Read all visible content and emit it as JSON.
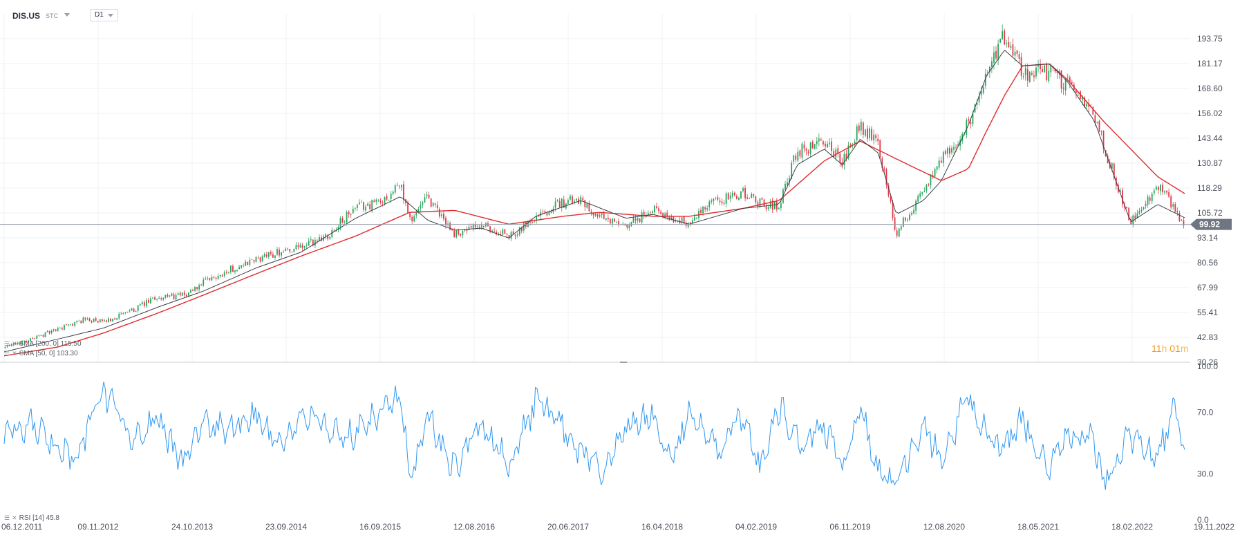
{
  "header": {
    "symbol": "DIS.US",
    "product_type": "STC",
    "timeframe": "D1"
  },
  "legend": {
    "sma200_label": "SMA [200, 0] 115.50",
    "sma50_label": "SMA [50, 0] 103.30",
    "rsi_label": "RSI [14] 45.8"
  },
  "countdown": {
    "hours": "11",
    "h_unit": "h",
    "minutes": "01",
    "m_unit": "m"
  },
  "colors": {
    "bull": "#26a65b",
    "bear": "#e0384a",
    "sma50": "#3a3f47",
    "sma200": "#e02b2b",
    "rsi": "#2e97f0",
    "grid": "#eef0f3",
    "price_tag": "#6f7682"
  },
  "chart_data": [
    {
      "type": "candlestick",
      "title": "DIS.US",
      "xlabel": "",
      "ylabel": "",
      "x_ticks": [
        "06.12.2011",
        "09.11.2012",
        "24.10.2013",
        "23.09.2014",
        "16.09.2015",
        "12.08.2016",
        "20.06.2017",
        "16.04.2018",
        "04.02.2019",
        "06.11.2019",
        "12.08.2020",
        "18.05.2021",
        "18.02.2022",
        "19.11.2022"
      ],
      "y_ticks": [
        30.26,
        42.83,
        55.41,
        67.99,
        80.56,
        93.14,
        105.72,
        118.29,
        130.87,
        143.44,
        156.02,
        168.6,
        181.17,
        193.75
      ],
      "ylim": [
        30.26,
        206.3
      ],
      "last_price": 99.92,
      "grid": true,
      "series": [
        {
          "name": "DIS.US",
          "x": [
            "2011-12",
            "2012-03",
            "2012-06",
            "2012-09",
            "2012-11",
            "2013-02",
            "2013-05",
            "2013-08",
            "2013-10",
            "2014-01",
            "2014-04",
            "2014-07",
            "2014-09",
            "2014-12",
            "2015-03",
            "2015-06",
            "2015-08",
            "2015-09",
            "2015-11",
            "2016-02",
            "2016-05",
            "2016-08",
            "2016-11",
            "2017-02",
            "2017-04",
            "2017-06",
            "2017-09",
            "2017-12",
            "2018-02",
            "2018-04",
            "2018-07",
            "2018-10",
            "2018-12",
            "2019-02",
            "2019-04",
            "2019-07",
            "2019-09",
            "2019-11",
            "2020-01",
            "2020-03",
            "2020-06",
            "2020-08",
            "2020-11",
            "2021-01",
            "2021-03",
            "2021-05",
            "2021-08",
            "2021-10",
            "2022-01",
            "2022-02",
            "2022-05",
            "2022-08",
            "2022-11"
          ],
          "values": [
            37.5,
            42.0,
            47.0,
            52.0,
            50.5,
            56.0,
            63.0,
            64.0,
            70.0,
            77.0,
            82.0,
            87.0,
            88.0,
            95.0,
            108.0,
            112.0,
            120.0,
            102.0,
            113.0,
            95.0,
            99.0,
            94.0,
            104.0,
            111.0,
            113.0,
            104.0,
            98.0,
            108.0,
            103.0,
            101.0,
            112.0,
            116.0,
            110.0,
            110.0,
            137.0,
            141.0,
            132.0,
            150.0,
            141.0,
            95.0,
            118.0,
            132.0,
            151.0,
            176.0,
            195.0,
            176.0,
            177.0,
            170.0,
            155.0,
            140.0,
            101.0,
            120.0,
            99.92
          ]
        },
        {
          "name": "SMA [200, 0]",
          "x": [
            "2011-12",
            "2012-06",
            "2012-11",
            "2013-05",
            "2013-10",
            "2014-04",
            "2014-09",
            "2015-03",
            "2015-09",
            "2016-02",
            "2016-08",
            "2017-02",
            "2017-06",
            "2017-12",
            "2018-04",
            "2018-10",
            "2019-02",
            "2019-07",
            "2019-11",
            "2020-03",
            "2020-08",
            "2020-11",
            "2021-01",
            "2021-03",
            "2021-05",
            "2021-08",
            "2021-10",
            "2022-02",
            "2022-05",
            "2022-08",
            "2022-11"
          ],
          "values": [
            33.5,
            38.0,
            45.0,
            55.0,
            64.0,
            75.0,
            84.0,
            94.0,
            106.0,
            107.0,
            100.0,
            104.0,
            106.0,
            104.0,
            104.0,
            108.0,
            112.0,
            132.0,
            142.0,
            133.0,
            122.0,
            128.0,
            147.0,
            165.0,
            180.0,
            181.0,
            173.0,
            152.0,
            138.0,
            124.0,
            115.5
          ]
        },
        {
          "name": "SMA [50, 0]",
          "x": [
            "2011-12",
            "2012-06",
            "2012-11",
            "2013-05",
            "2013-10",
            "2014-04",
            "2014-09",
            "2015-03",
            "2015-08",
            "2015-11",
            "2016-02",
            "2016-05",
            "2016-08",
            "2016-11",
            "2017-04",
            "2017-09",
            "2017-12",
            "2018-04",
            "2018-10",
            "2019-02",
            "2019-04",
            "2019-07",
            "2019-09",
            "2019-11",
            "2020-01",
            "2020-03",
            "2020-06",
            "2020-08",
            "2020-11",
            "2021-01",
            "2021-03",
            "2021-05",
            "2021-08",
            "2021-10",
            "2022-01",
            "2022-05",
            "2022-08",
            "2022-11"
          ],
          "values": [
            35.5,
            42.0,
            47.5,
            58.0,
            66.0,
            78.0,
            86.0,
            103.0,
            114.0,
            102.0,
            97.0,
            98.0,
            93.0,
            104.0,
            112.0,
            103.0,
            105.0,
            100.0,
            108.0,
            110.0,
            130.0,
            138.0,
            130.0,
            143.0,
            136.0,
            105.0,
            112.0,
            122.0,
            150.0,
            175.0,
            188.0,
            180.0,
            181.0,
            172.0,
            152.0,
            101.0,
            110.0,
            103.3
          ]
        }
      ]
    },
    {
      "type": "line",
      "title": "RSI [14]",
      "xlabel": "",
      "ylabel": "",
      "y_ticks": [
        0.0,
        30.0,
        70.0,
        100.0
      ],
      "ylim": [
        0,
        100
      ],
      "last_value": 45.8,
      "grid": false,
      "series": [
        {
          "name": "RSI [14]",
          "x": [
            "2011-12",
            "2012-03",
            "2012-06",
            "2012-08",
            "2012-10",
            "2012-11",
            "2013-02",
            "2013-05",
            "2013-08",
            "2013-10",
            "2014-01",
            "2014-04",
            "2014-07",
            "2014-09",
            "2014-12",
            "2015-03",
            "2015-06",
            "2015-08",
            "2015-09",
            "2015-11",
            "2016-02",
            "2016-05",
            "2016-08",
            "2016-11",
            "2017-02",
            "2017-04",
            "2017-06",
            "2017-09",
            "2017-12",
            "2018-02",
            "2018-04",
            "2018-07",
            "2018-10",
            "2018-12",
            "2019-02",
            "2019-04",
            "2019-07",
            "2019-09",
            "2019-11",
            "2020-01",
            "2020-03",
            "2020-06",
            "2020-08",
            "2020-11",
            "2021-01",
            "2021-03",
            "2021-05",
            "2021-08",
            "2021-10",
            "2022-01",
            "2022-02",
            "2022-05",
            "2022-08",
            "2022-10",
            "2022-11"
          ],
          "values": [
            55,
            62,
            48,
            38,
            72,
            85,
            52,
            65,
            35,
            62,
            58,
            70,
            45,
            68,
            60,
            55,
            72,
            80,
            28,
            68,
            32,
            62,
            35,
            78,
            60,
            45,
            30,
            62,
            68,
            40,
            70,
            45,
            68,
            32,
            75,
            50,
            60,
            35,
            72,
            30,
            25,
            62,
            40,
            80,
            55,
            45,
            65,
            35,
            55,
            52,
            25,
            55,
            40,
            75,
            45.8
          ]
        }
      ]
    }
  ]
}
